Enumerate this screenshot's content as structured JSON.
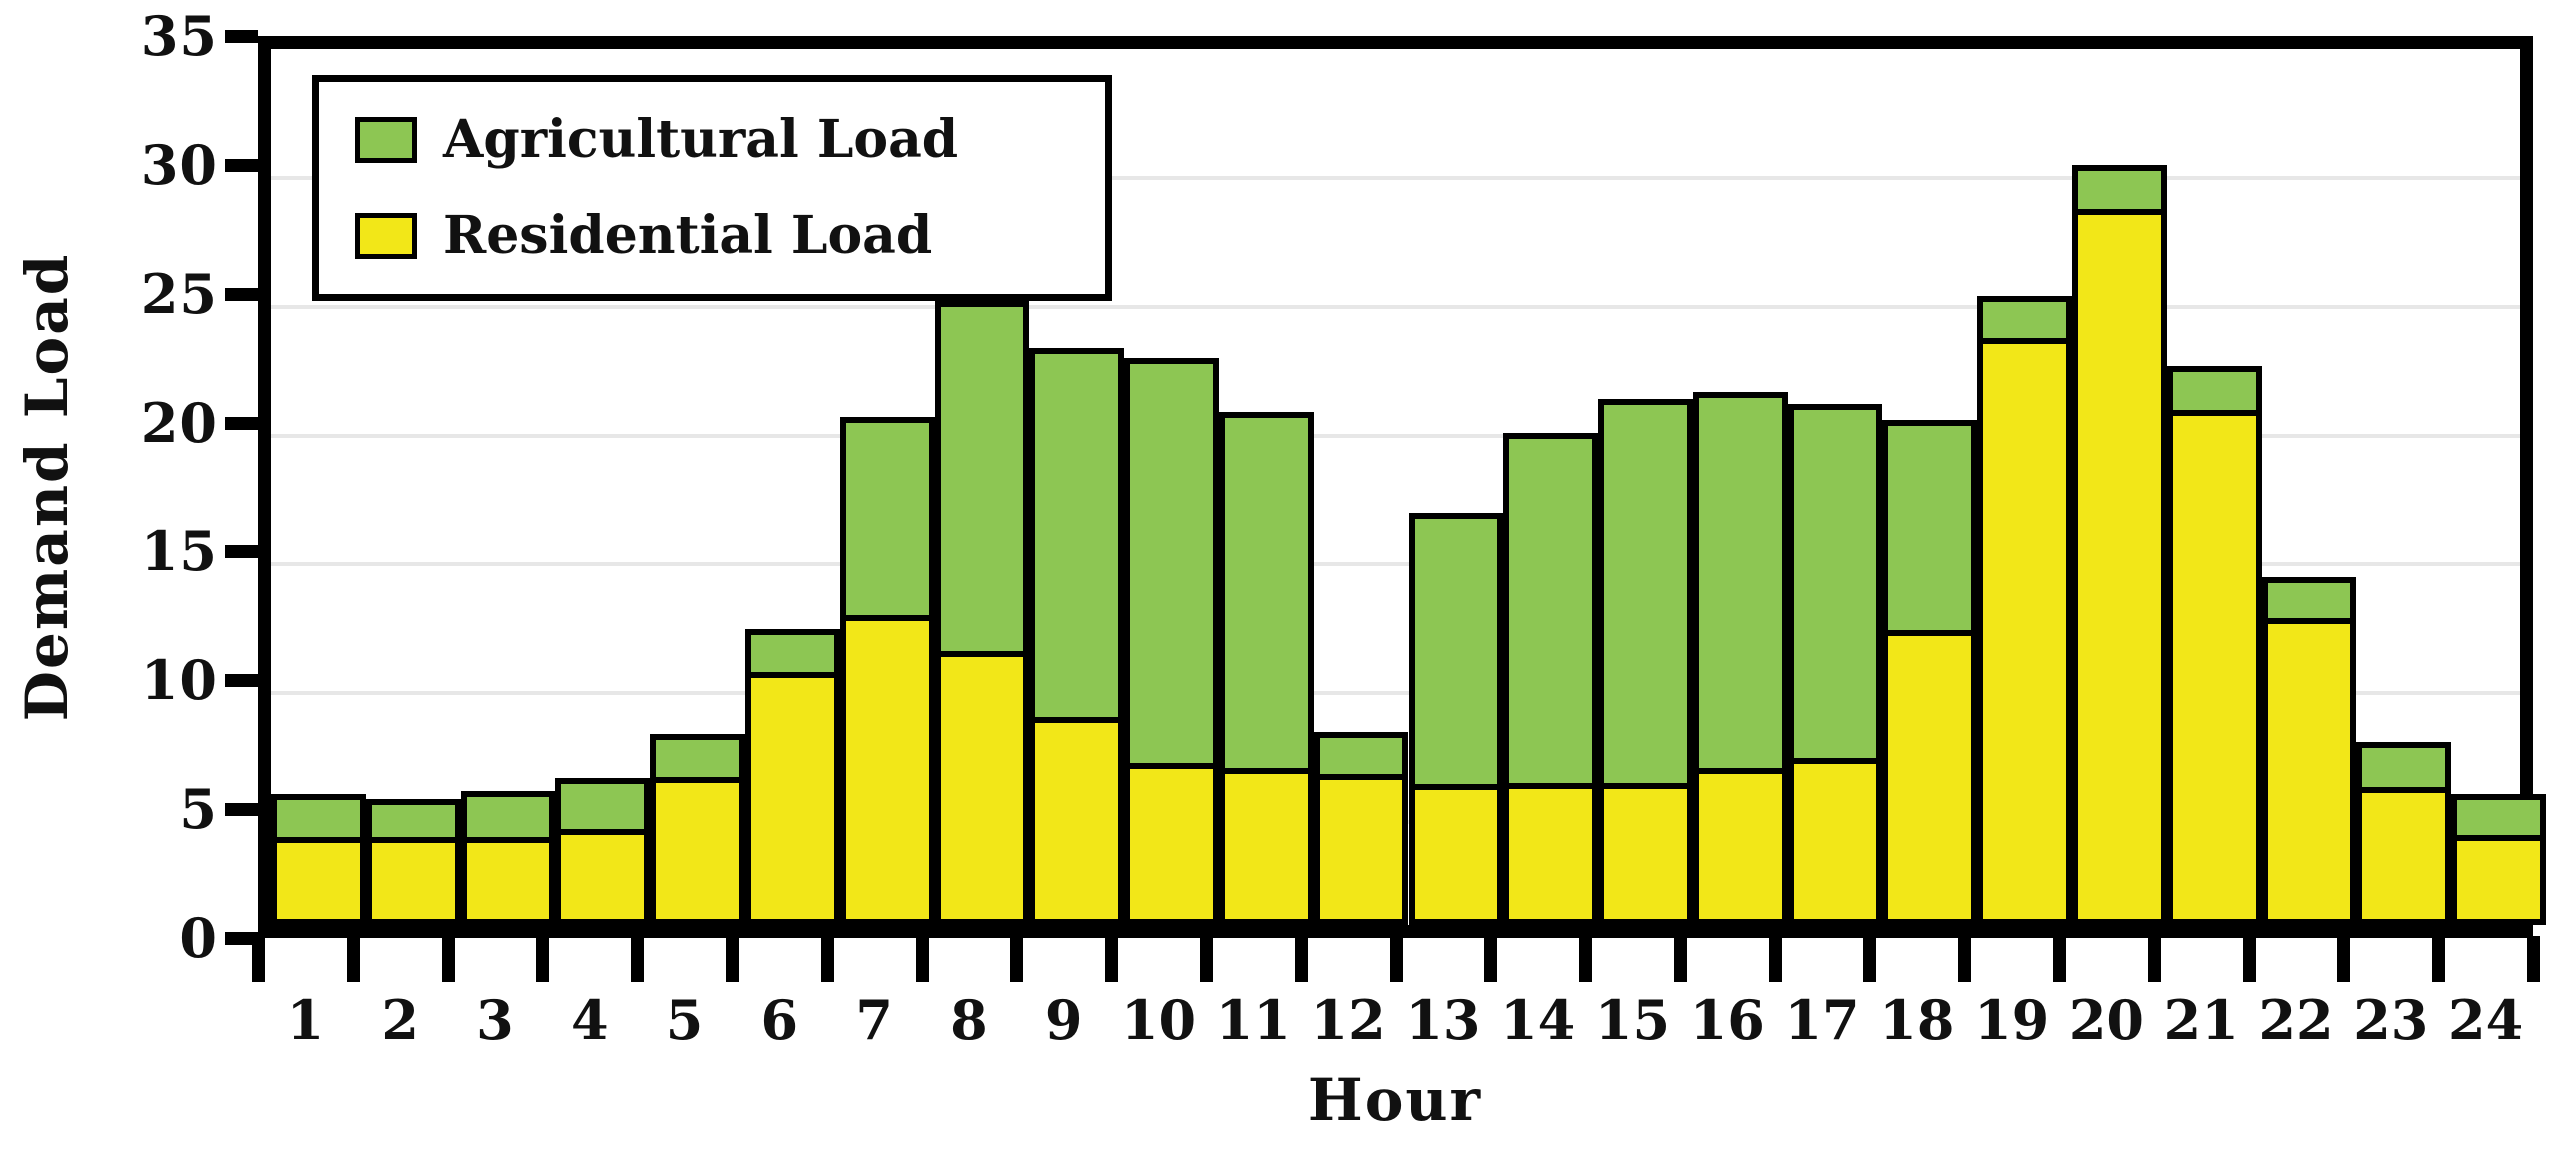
{
  "chart_data": {
    "type": "bar",
    "stacked": true,
    "title": "",
    "xlabel": "Hour",
    "ylabel": "Demand Load",
    "categories": [
      "1",
      "2",
      "3",
      "4",
      "5",
      "6",
      "7",
      "8",
      "9",
      "10",
      "11",
      "12",
      "13",
      "14",
      "15",
      "16",
      "17",
      "18",
      "19",
      "20",
      "21",
      "22",
      "23",
      "24"
    ],
    "series": [
      {
        "name": "Agricultural Load",
        "color": "#8dc653",
        "stack_position": "top",
        "values": [
          1.6,
          1.4,
          1.7,
          1.9,
          1.5,
          1.5,
          7.6,
          13.6,
          14.4,
          15.8,
          13.9,
          1.5,
          10.6,
          13.7,
          15.0,
          14.7,
          13.8,
          8.1,
          1.4,
          1.5,
          1.5,
          1.4,
          1.6,
          1.5
        ]
      },
      {
        "name": "Residential Load",
        "color": "#f2e718",
        "stack_position": "bottom",
        "values": [
          3.5,
          3.5,
          3.5,
          3.8,
          5.9,
          10.0,
          12.1,
          10.6,
          8.0,
          6.2,
          6.0,
          6.0,
          5.4,
          5.4,
          5.4,
          6.0,
          6.4,
          11.5,
          23.0,
          28.0,
          20.2,
          12.1,
          5.5,
          3.6
        ]
      }
    ],
    "totals": [
      5.1,
      4.9,
      5.2,
      5.7,
      7.4,
      11.5,
      19.7,
      24.2,
      22.4,
      22.0,
      19.9,
      7.5,
      16.0,
      19.1,
      20.4,
      20.7,
      20.2,
      19.6,
      24.4,
      29.5,
      21.7,
      13.5,
      7.1,
      5.1
    ],
    "ylim": [
      0,
      35
    ],
    "yticks": [
      0,
      5,
      10,
      15,
      20,
      25,
      30,
      35
    ],
    "grid": true,
    "legend_position": "top-left",
    "bar_outline_color": "#000000",
    "axis_color": "#000000",
    "gridline_color": "#e7e7e7"
  }
}
